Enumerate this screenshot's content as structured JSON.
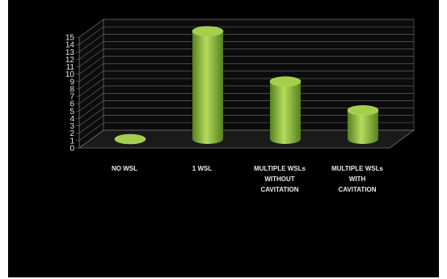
{
  "chart_data": {
    "type": "bar",
    "bar_shape": "cylinder",
    "view": "3d",
    "categories": [
      [
        "NO WSL"
      ],
      [
        "1 WSL"
      ],
      [
        "MULTIPLE WSLs",
        "WITHOUT",
        "CAVITATION"
      ],
      [
        "MULTIPLE WSLs",
        "WITH",
        "CAVITATION"
      ]
    ],
    "values": [
      0,
      14.6,
      7.8,
      3.9
    ],
    "ylim": [
      0,
      15
    ],
    "yticks": [
      0,
      1,
      2,
      3,
      4,
      5,
      6,
      7,
      8,
      9,
      10,
      11,
      12,
      13,
      14,
      15
    ],
    "grid": true,
    "legend": "none",
    "colors": {
      "background": "#000000",
      "bar_light": "#b5dc5c",
      "bar_mid": "#86b63a",
      "bar_dark": "#55811f",
      "bar_top": "#a3cf4d",
      "wall": "#0c0c0c",
      "grid": "#707070",
      "floor": "#1a1a1a",
      "text": "#e8e8e8"
    }
  }
}
